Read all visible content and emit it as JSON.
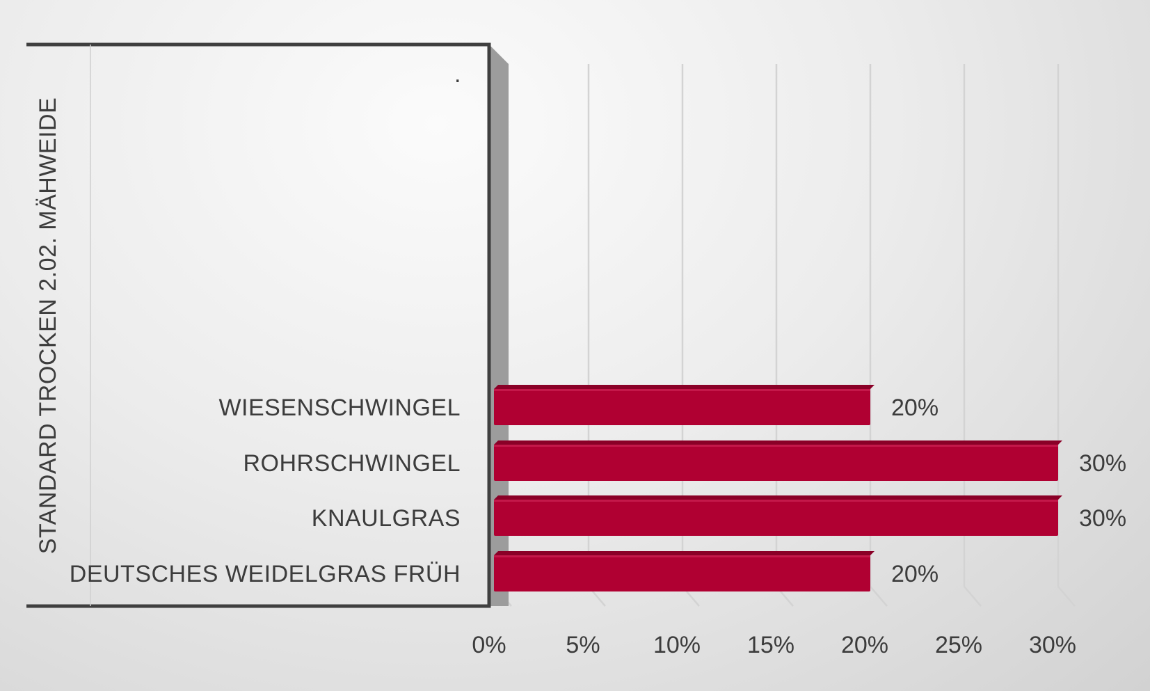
{
  "chart_data": {
    "type": "bar",
    "orientation": "horizontal",
    "title": "",
    "xlabel": "",
    "ylabel": "",
    "group_label": "STANDARD TROCKEN 2.02. MÄHWEIDE",
    "categories": [
      "WIESENSCHWINGEL",
      "ROHRSCHWINGEL",
      "KNAULGRAS",
      "DEUTSCHES WEIDELGRAS FRÜH"
    ],
    "values": [
      0.2,
      0.3,
      0.3,
      0.2
    ],
    "data_labels": [
      "20%",
      "30%",
      "30%",
      "20%"
    ],
    "xlim": [
      0,
      0.3
    ],
    "xticks": [
      0,
      0.05,
      0.1,
      0.15,
      0.2,
      0.25,
      0.3
    ],
    "xtick_labels": [
      "0%",
      "5%",
      "10%",
      "15%",
      "20%",
      "25%",
      "30%"
    ],
    "stray_label": ".",
    "bar_color": "#b00032",
    "grid": true,
    "legend": "none"
  }
}
